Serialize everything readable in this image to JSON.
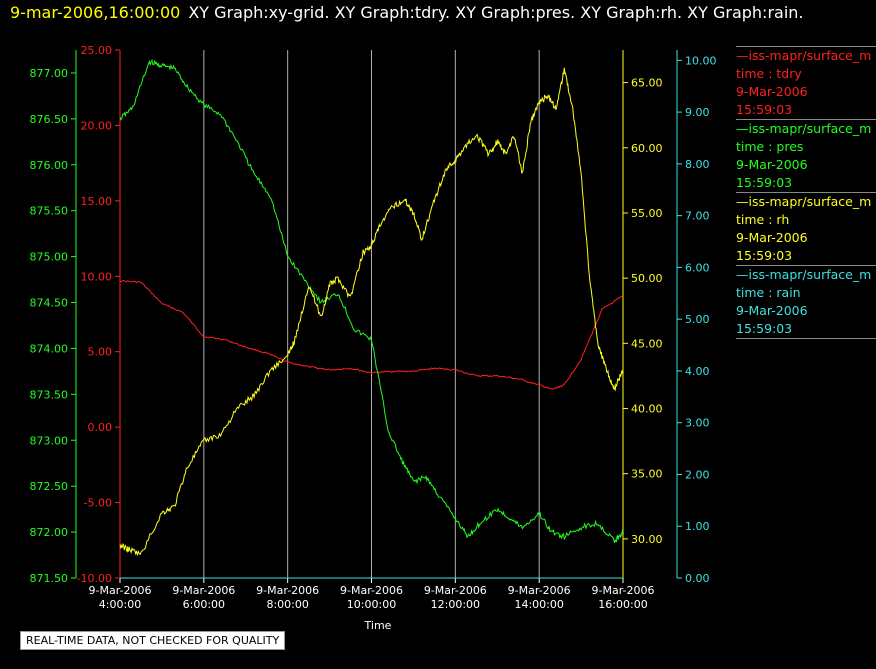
{
  "header": {
    "timestamp": "9-mar-2006,16:00:00",
    "graph_titles": "XY Graph:xy-grid.  XY Graph:tdry.  XY Graph:pres.  XY Graph:rh.  XY Graph:rain."
  },
  "notice": "REAL-TIME DATA, NOT CHECKED FOR QUALITY",
  "colors": {
    "tdry": "#ff2020",
    "pres": "#20ff20",
    "rh": "#ffff20",
    "rain": "#40e0e0",
    "grid": "#b0b0b0",
    "text": "#ffffff"
  },
  "legend": [
    {
      "source": "—iss-mapr/surface_m",
      "var": "time : tdry",
      "date": "9-Mar-2006",
      "time": "15:59:03",
      "color": "#ff2020"
    },
    {
      "source": "—iss-mapr/surface_m",
      "var": "time : pres",
      "date": "9-Mar-2006",
      "time": "15:59:03",
      "color": "#20ff20"
    },
    {
      "source": "—iss-mapr/surface_m",
      "var": "time : rh",
      "date": "9-Mar-2006",
      "time": "15:59:03",
      "color": "#ffff20"
    },
    {
      "source": "—iss-mapr/surface_m",
      "var": "time : rain",
      "date": "9-Mar-2006",
      "time": "15:59:03",
      "color": "#40e0e0"
    }
  ],
  "chart_data": {
    "type": "line",
    "xlabel": "Time",
    "x_ticks": [
      {
        "date": "9-Mar-2006",
        "time": "4:00:00"
      },
      {
        "date": "9-Mar-2006",
        "time": "6:00:00"
      },
      {
        "date": "9-Mar-2006",
        "time": "8:00:00"
      },
      {
        "date": "9-Mar-2006",
        "time": "10:00:00"
      },
      {
        "date": "9-Mar-2006",
        "time": "12:00:00"
      },
      {
        "date": "9-Mar-2006",
        "time": "14:00:00"
      },
      {
        "date": "9-Mar-2006",
        "time": "16:00:00"
      }
    ],
    "xlim": [
      4,
      16
    ],
    "grid": "vertical",
    "axes": [
      {
        "name": "tdry",
        "side": "left-inner",
        "ylim": [
          -10,
          25
        ],
        "ticks": [
          "25.00",
          "20.00",
          "15.00",
          "10.00",
          "5.00",
          "0.00",
          "-5.00",
          "-10.00"
        ]
      },
      {
        "name": "pres",
        "side": "left-outer",
        "ylim": [
          871.5,
          877.25
        ],
        "ticks": [
          "877.00",
          "876.50",
          "876.00",
          "875.50",
          "875.00",
          "874.50",
          "874.00",
          "873.50",
          "873.00",
          "872.50",
          "872.00",
          "871.50"
        ]
      },
      {
        "name": "rh",
        "side": "right-inner",
        "ylim": [
          27,
          67.5
        ],
        "ticks": [
          "65.00",
          "60.00",
          "55.00",
          "50.00",
          "45.00",
          "40.00",
          "35.00",
          "30.00"
        ]
      },
      {
        "name": "rain",
        "side": "right-outer",
        "ylim": [
          0,
          10.2
        ],
        "ticks": [
          "10.00",
          "9.00",
          "8.00",
          "7.00",
          "6.00",
          "5.00",
          "4.00",
          "3.00",
          "2.00",
          "1.00",
          "0.00"
        ]
      }
    ],
    "series": [
      {
        "name": "time : tdry",
        "axis": "tdry",
        "x": [
          4,
          4.5,
          5,
          5.5,
          6,
          6.5,
          7,
          7.5,
          8,
          8.5,
          9,
          9.5,
          10,
          10.5,
          11,
          11.5,
          12,
          12.5,
          13,
          13.5,
          14,
          14.3,
          14.6,
          15,
          15.5,
          16
        ],
        "y": [
          9.7,
          9.6,
          8.2,
          7.6,
          6.0,
          5.8,
          5.3,
          4.9,
          4.3,
          4.0,
          3.8,
          3.9,
          3.6,
          3.7,
          3.7,
          3.9,
          3.8,
          3.4,
          3.4,
          3.2,
          2.8,
          2.5,
          2.8,
          4.5,
          7.8,
          8.7
        ]
      },
      {
        "name": "time : pres",
        "axis": "pres",
        "x": [
          4,
          4.3,
          4.7,
          5,
          5.3,
          5.6,
          6,
          6.4,
          6.8,
          7.2,
          7.6,
          8,
          8.4,
          8.8,
          9.2,
          9.6,
          10,
          10.4,
          10.7,
          11,
          11.3,
          11.6,
          12,
          12.3,
          12.6,
          13,
          13.3,
          13.6,
          14,
          14.3,
          14.6,
          15,
          15.4,
          15.8,
          16
        ],
        "y": [
          876.5,
          876.62,
          877.12,
          877.08,
          877.05,
          876.85,
          876.65,
          876.55,
          876.25,
          875.9,
          875.65,
          875.0,
          874.75,
          874.5,
          874.6,
          874.2,
          874.1,
          873.1,
          872.8,
          872.55,
          872.6,
          872.4,
          872.15,
          871.95,
          872.1,
          872.25,
          872.15,
          872.05,
          872.2,
          872.0,
          871.95,
          872.05,
          872.1,
          871.9,
          872.0
        ]
      },
      {
        "name": "time : rh",
        "axis": "rh",
        "x": [
          4,
          4.2,
          4.5,
          5,
          5.3,
          5.6,
          6,
          6.4,
          6.8,
          7.2,
          7.6,
          8,
          8.2,
          8.5,
          8.8,
          9,
          9.2,
          9.5,
          9.8,
          10,
          10.2,
          10.5,
          10.8,
          11,
          11.2,
          11.5,
          11.8,
          12,
          12.2,
          12.5,
          12.8,
          13,
          13.2,
          13.4,
          13.6,
          13.8,
          14,
          14.2,
          14.4,
          14.6,
          14.8,
          15,
          15.2,
          15.4,
          15.6,
          15.8,
          16
        ],
        "y": [
          29.5,
          29.2,
          28.8,
          32.0,
          32.5,
          35.5,
          37.5,
          38.0,
          40.0,
          41.0,
          43.0,
          44.0,
          45.5,
          49.5,
          47.0,
          49.5,
          50.0,
          48.5,
          52.0,
          52.5,
          54.0,
          55.5,
          56.0,
          55.0,
          53.0,
          56.0,
          58.5,
          59.0,
          60.0,
          61.0,
          59.5,
          60.5,
          59.5,
          61.0,
          58.0,
          62.0,
          63.5,
          64.0,
          63.0,
          66.0,
          63.0,
          58.0,
          50.0,
          45.0,
          43.0,
          41.5,
          43.0
        ]
      },
      {
        "name": "time : rain",
        "axis": "rain",
        "x": [
          4,
          16
        ],
        "y": [
          0,
          0
        ]
      }
    ]
  }
}
